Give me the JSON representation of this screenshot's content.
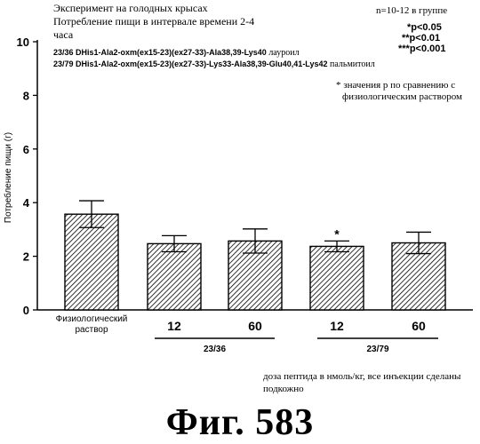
{
  "header": {
    "line1": "Эксперимент на голодных крысах",
    "line2": "Потребление пищи в интервале времени 2-4",
    "line3": "часа",
    "group_size": "n=10-12 в группе"
  },
  "significance": {
    "p1": "*p<0.05",
    "p2": "**p<0.01",
    "p3": "***p<0.001"
  },
  "legend": {
    "row1_formula": "23/36 DHis1-Ala2-oxm(ex15-23)(ex27-33)-Ala38,39-Lys40",
    "row1_label": "лауроил",
    "row2_formula": "23/79 DHis1-Ala2-oxm(ex15-23)(ex27-33)-Lys33-Ala38,39-Glu40,41-Lys42",
    "row2_label": "пальмитоил"
  },
  "note": {
    "line1": "* значения p по сравнению с",
    "line2": "физиологическим раствором"
  },
  "footnote": {
    "line1": "доза пептида в нмоль/кг, все инъекции сделаны",
    "line2": "подкожно"
  },
  "figure_label": "Фиг. 583",
  "chart_data": {
    "type": "bar",
    "ylabel": "Потребление пищи (г)",
    "ylim": [
      0,
      10
    ],
    "yticks": [
      0,
      2,
      4,
      6,
      8,
      10
    ],
    "grid": false,
    "categories": [
      {
        "line1": "Физиологический",
        "line2": "раствор"
      },
      {
        "line1": "12",
        "line2": ""
      },
      {
        "line1": "60",
        "line2": ""
      },
      {
        "line1": "12",
        "line2": ""
      },
      {
        "line1": "60",
        "line2": ""
      }
    ],
    "values": [
      3.57,
      2.47,
      2.57,
      2.37,
      2.5
    ],
    "errors": [
      0.5,
      0.3,
      0.45,
      0.2,
      0.4
    ],
    "markers": [
      "",
      "",
      "",
      "*",
      ""
    ],
    "groups": [
      {
        "label": "23/36",
        "from": 1,
        "to": 2
      },
      {
        "label": "23/79",
        "from": 3,
        "to": 4
      }
    ]
  }
}
